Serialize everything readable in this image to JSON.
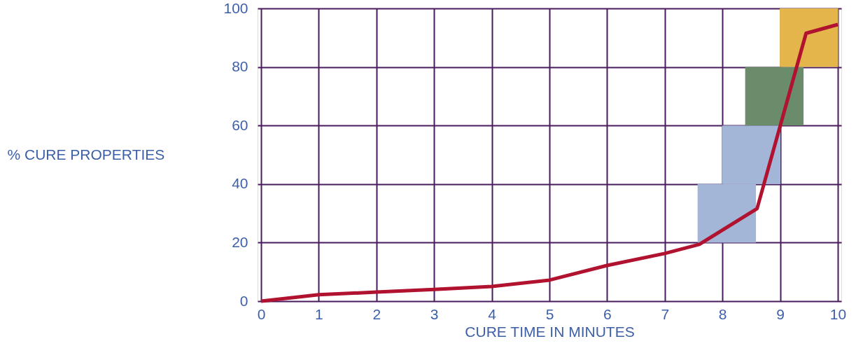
{
  "chart_data": {
    "type": "line",
    "xlabel": "CURE TIME IN MINUTES",
    "ylabel": "% CURE PROPERTIES",
    "xlim": [
      0,
      10
    ],
    "xticks": [
      0,
      1,
      2,
      3,
      4,
      5,
      6,
      7,
      8,
      9,
      10
    ],
    "ylim": [
      0,
      100
    ],
    "yticks": [
      0,
      20,
      40,
      60,
      80,
      100
    ],
    "grid": true,
    "marker": "none",
    "line_style": "solid",
    "series": [
      {
        "type": "bar",
        "x": [
          8.075,
          8.5,
          8.9,
          9.5
        ],
        "base": [
          20,
          40,
          60,
          80
        ],
        "values": [
          20,
          20,
          20,
          20
        ],
        "colors": [
          "#a3b6d8",
          "#a3b6d8",
          "#6b8c6b",
          "#e3b54a"
        ]
      },
      {
        "color": "#b0122f",
        "x": [
          0,
          1,
          2,
          3,
          4,
          5,
          6,
          7,
          7.6,
          8.6,
          9.45,
          10
        ],
        "values": [
          0,
          2.2,
          3.1,
          4,
          5,
          7.2,
          12.2,
          16.3,
          19.4,
          31.6,
          91.5,
          94.5
        ]
      }
    ]
  }
}
